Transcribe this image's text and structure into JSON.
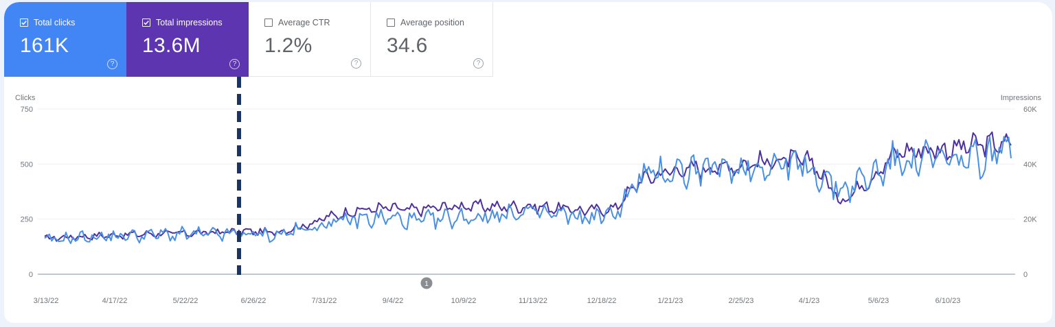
{
  "metrics": [
    {
      "label": "Total clicks",
      "value": "161K",
      "checked": true,
      "color": "#4285f4"
    },
    {
      "label": "Total impressions",
      "value": "13.6M",
      "checked": true,
      "color": "#5e35b1"
    },
    {
      "label": "Average CTR",
      "value": "1.2%",
      "checked": false,
      "color": "#ffffff"
    },
    {
      "label": "Average position",
      "value": "34.6",
      "checked": false,
      "color": "#ffffff"
    }
  ],
  "help_glyph": "?",
  "annotation_marker": "1",
  "chart_data": {
    "type": "line",
    "title": "",
    "left_axis": {
      "label": "Clicks",
      "ticks": [
        "750",
        "500",
        "250",
        "0"
      ],
      "range": [
        0,
        750
      ]
    },
    "right_axis": {
      "label": "Impressions",
      "ticks": [
        "60K",
        "40K",
        "20K",
        "0"
      ],
      "range": [
        0,
        60000
      ]
    },
    "x_ticks": [
      "3/13/22",
      "4/17/22",
      "5/22/22",
      "6/26/22",
      "7/31/22",
      "9/4/22",
      "10/9/22",
      "11/13/22",
      "12/18/22",
      "1/21/23",
      "2/25/23",
      "4/1/23",
      "5/6/23",
      "6/10/23"
    ],
    "grid": true,
    "legend": "metric tiles (top)",
    "vertical_marker": {
      "x_label": "6/26/22 (approx. 6/21/22)",
      "style": "dashed",
      "color": "#1b3563"
    },
    "annotations": [
      {
        "label": "1",
        "near": "9/4/22 - 10/9/22"
      }
    ],
    "x": [
      "3/13/22",
      "3/27/22",
      "4/10/22",
      "4/24/22",
      "5/8/22",
      "5/22/22",
      "6/5/22",
      "6/19/22",
      "7/3/22",
      "7/17/22",
      "7/31/22",
      "8/14/22",
      "8/28/22",
      "9/11/22",
      "9/25/22",
      "10/9/22",
      "10/23/22",
      "11/6/22",
      "11/20/22",
      "12/4/22",
      "12/18/22",
      "1/1/23",
      "1/15/23",
      "1/29/23",
      "2/12/23",
      "2/26/23",
      "3/12/23",
      "3/26/23",
      "4/9/23",
      "4/23/23",
      "5/7/23",
      "5/21/23",
      "6/4/23",
      "6/18/23",
      "7/2/23"
    ],
    "series": [
      {
        "name": "Clicks",
        "axis": "left",
        "color": "#4a90e2",
        "values": [
          150,
          165,
          170,
          175,
          180,
          180,
          180,
          185,
          175,
          200,
          230,
          250,
          255,
          240,
          250,
          260,
          270,
          280,
          270,
          255,
          270,
          440,
          470,
          470,
          480,
          490,
          500,
          480,
          380,
          440,
          520,
          520,
          510,
          520,
          580
        ]
      },
      {
        "name": "Impressions",
        "axis": "right",
        "color": "#4e2fa0",
        "values": [
          13000,
          13600,
          14000,
          14400,
          14800,
          14800,
          15200,
          15600,
          15200,
          17200,
          20800,
          23200,
          24000,
          23200,
          24400,
          24800,
          24400,
          24800,
          24000,
          23200,
          23600,
          34400,
          37600,
          38400,
          39200,
          40400,
          41600,
          40800,
          26400,
          34400,
          44400,
          45200,
          45600,
          47200,
          47200
        ]
      }
    ]
  }
}
